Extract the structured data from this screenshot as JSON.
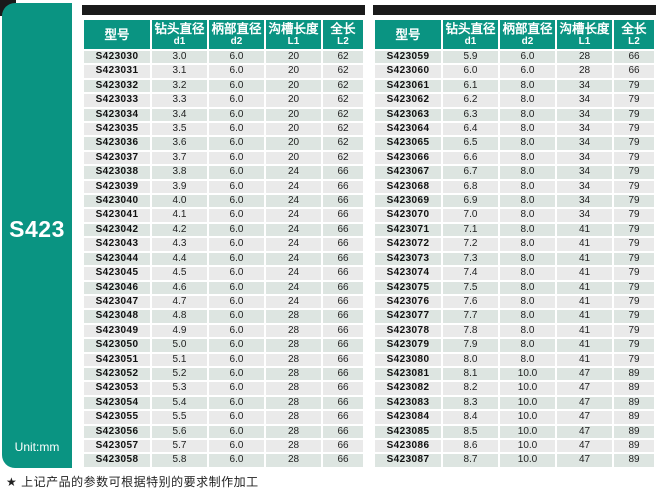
{
  "sidebar": {
    "series_label": "S423",
    "unit_label": "Unit:mm"
  },
  "table_headers": {
    "model": "型号",
    "cols": [
      {
        "label": "钻头直径",
        "sub": "d1"
      },
      {
        "label": "柄部直径",
        "sub": "d2"
      },
      {
        "label": "沟槽长度",
        "sub": "L1"
      },
      {
        "label": "全长",
        "sub": "L2"
      }
    ]
  },
  "left_table": {
    "rows": [
      [
        "S423030",
        "3.0",
        "6.0",
        "20",
        "62"
      ],
      [
        "S423031",
        "3.1",
        "6.0",
        "20",
        "62"
      ],
      [
        "S423032",
        "3.2",
        "6.0",
        "20",
        "62"
      ],
      [
        "S423033",
        "3.3",
        "6.0",
        "20",
        "62"
      ],
      [
        "S423034",
        "3.4",
        "6.0",
        "20",
        "62"
      ],
      [
        "S423035",
        "3.5",
        "6.0",
        "20",
        "62"
      ],
      [
        "S423036",
        "3.6",
        "6.0",
        "20",
        "62"
      ],
      [
        "S423037",
        "3.7",
        "6.0",
        "20",
        "62"
      ],
      [
        "S423038",
        "3.8",
        "6.0",
        "24",
        "66"
      ],
      [
        "S423039",
        "3.9",
        "6.0",
        "24",
        "66"
      ],
      [
        "S423040",
        "4.0",
        "6.0",
        "24",
        "66"
      ],
      [
        "S423041",
        "4.1",
        "6.0",
        "24",
        "66"
      ],
      [
        "S423042",
        "4.2",
        "6.0",
        "24",
        "66"
      ],
      [
        "S423043",
        "4.3",
        "6.0",
        "24",
        "66"
      ],
      [
        "S423044",
        "4.4",
        "6.0",
        "24",
        "66"
      ],
      [
        "S423045",
        "4.5",
        "6.0",
        "24",
        "66"
      ],
      [
        "S423046",
        "4.6",
        "6.0",
        "24",
        "66"
      ],
      [
        "S423047",
        "4.7",
        "6.0",
        "24",
        "66"
      ],
      [
        "S423048",
        "4.8",
        "6.0",
        "28",
        "66"
      ],
      [
        "S423049",
        "4.9",
        "6.0",
        "28",
        "66"
      ],
      [
        "S423050",
        "5.0",
        "6.0",
        "28",
        "66"
      ],
      [
        "S423051",
        "5.1",
        "6.0",
        "28",
        "66"
      ],
      [
        "S423052",
        "5.2",
        "6.0",
        "28",
        "66"
      ],
      [
        "S423053",
        "5.3",
        "6.0",
        "28",
        "66"
      ],
      [
        "S423054",
        "5.4",
        "6.0",
        "28",
        "66"
      ],
      [
        "S423055",
        "5.5",
        "6.0",
        "28",
        "66"
      ],
      [
        "S423056",
        "5.6",
        "6.0",
        "28",
        "66"
      ],
      [
        "S423057",
        "5.7",
        "6.0",
        "28",
        "66"
      ],
      [
        "S423058",
        "5.8",
        "6.0",
        "28",
        "66"
      ]
    ]
  },
  "right_table": {
    "rows": [
      [
        "S423059",
        "5.9",
        "6.0",
        "28",
        "66"
      ],
      [
        "S423060",
        "6.0",
        "6.0",
        "28",
        "66"
      ],
      [
        "S423061",
        "6.1",
        "8.0",
        "34",
        "79"
      ],
      [
        "S423062",
        "6.2",
        "8.0",
        "34",
        "79"
      ],
      [
        "S423063",
        "6.3",
        "8.0",
        "34",
        "79"
      ],
      [
        "S423064",
        "6.4",
        "8.0",
        "34",
        "79"
      ],
      [
        "S423065",
        "6.5",
        "8.0",
        "34",
        "79"
      ],
      [
        "S423066",
        "6.6",
        "8.0",
        "34",
        "79"
      ],
      [
        "S423067",
        "6.7",
        "8.0",
        "34",
        "79"
      ],
      [
        "S423068",
        "6.8",
        "8.0",
        "34",
        "79"
      ],
      [
        "S423069",
        "6.9",
        "8.0",
        "34",
        "79"
      ],
      [
        "S423070",
        "7.0",
        "8.0",
        "34",
        "79"
      ],
      [
        "S423071",
        "7.1",
        "8.0",
        "41",
        "79"
      ],
      [
        "S423072",
        "7.2",
        "8.0",
        "41",
        "79"
      ],
      [
        "S423073",
        "7.3",
        "8.0",
        "41",
        "79"
      ],
      [
        "S423074",
        "7.4",
        "8.0",
        "41",
        "79"
      ],
      [
        "S423075",
        "7.5",
        "8.0",
        "41",
        "79"
      ],
      [
        "S423076",
        "7.6",
        "8.0",
        "41",
        "79"
      ],
      [
        "S423077",
        "7.7",
        "8.0",
        "41",
        "79"
      ],
      [
        "S423078",
        "7.8",
        "8.0",
        "41",
        "79"
      ],
      [
        "S423079",
        "7.9",
        "8.0",
        "41",
        "79"
      ],
      [
        "S423080",
        "8.0",
        "8.0",
        "41",
        "79"
      ],
      [
        "S423081",
        "8.1",
        "10.0",
        "47",
        "89"
      ],
      [
        "S423082",
        "8.2",
        "10.0",
        "47",
        "89"
      ],
      [
        "S423083",
        "8.3",
        "10.0",
        "47",
        "89"
      ],
      [
        "S423084",
        "8.4",
        "10.0",
        "47",
        "89"
      ],
      [
        "S423085",
        "8.5",
        "10.0",
        "47",
        "89"
      ],
      [
        "S423086",
        "8.6",
        "10.0",
        "47",
        "89"
      ],
      [
        "S423087",
        "8.7",
        "10.0",
        "47",
        "89"
      ]
    ]
  },
  "footnote": "★ 上记产品的参数可根据特别的要求制作加工",
  "colors": {
    "teal": "#0a9482",
    "top_bar": "#1a1a1a",
    "row_green": "#dde5e1",
    "row_gray": "#eaeaea",
    "cell_text": "#1f1f1f"
  }
}
